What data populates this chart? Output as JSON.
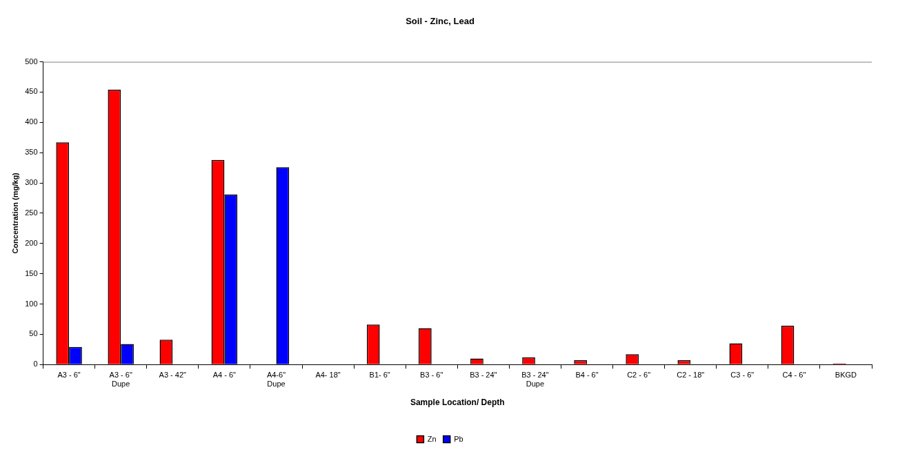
{
  "chart_data": {
    "type": "bar",
    "title": "Soil - Zinc, Lead",
    "xlabel": "Sample Location/ Depth",
    "ylabel": "Concentration (mg/kg)",
    "categories": [
      "A3 - 6\"",
      "A3 - 6\"\nDupe",
      "A3 - 42\"",
      "A4 - 6\"",
      "A4-6\"\nDupe",
      "A4- 18\"",
      "B1- 6\"",
      "B3 - 6\"",
      "B3 - 24\"",
      "B3 - 24\"\nDupe",
      "B4 - 6\"",
      "C2 - 6\"",
      "C2 - 18\"",
      "C3 - 6\"",
      "C4 - 6\"",
      "BKGD"
    ],
    "series": [
      {
        "name": "Zn",
        "color": "#ff0000",
        "values": [
          367,
          454,
          41,
          338,
          null,
          null,
          66,
          60,
          10,
          12,
          7,
          17,
          7,
          35,
          64,
          2
        ]
      },
      {
        "name": "Pb",
        "color": "#0000ff",
        "values": [
          29,
          34,
          null,
          281,
          326,
          null,
          null,
          null,
          null,
          null,
          null,
          null,
          null,
          null,
          null,
          null
        ]
      }
    ],
    "ylim": [
      0,
      500
    ],
    "yticks": [
      0,
      50,
      100,
      150,
      200,
      250,
      300,
      350,
      400,
      450,
      500
    ],
    "grid": false,
    "legend": "bottom"
  }
}
